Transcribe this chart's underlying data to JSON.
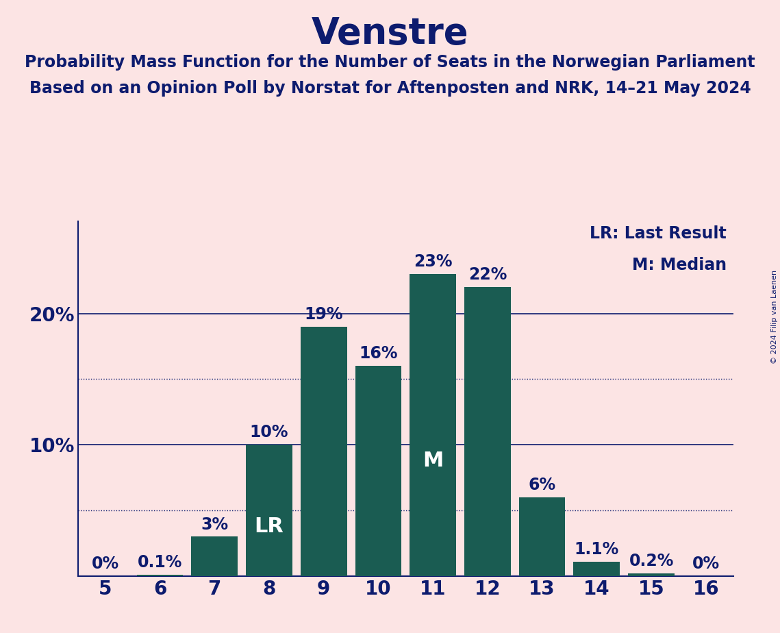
{
  "title": "Venstre",
  "subtitle1": "Probability Mass Function for the Number of Seats in the Norwegian Parliament",
  "subtitle2": "Based on an Opinion Poll by Norstat for Aftenposten and NRK, 14–21 May 2024",
  "copyright": "© 2024 Filip van Laenen",
  "seats": [
    5,
    6,
    7,
    8,
    9,
    10,
    11,
    12,
    13,
    14,
    15,
    16
  ],
  "probabilities": [
    0.0,
    0.1,
    3.0,
    10.0,
    19.0,
    16.0,
    23.0,
    22.0,
    6.0,
    1.1,
    0.2,
    0.0
  ],
  "bar_color": "#1a5c52",
  "background_color": "#fce4e4",
  "text_color": "#0d1b6e",
  "white_color": "#ffffff",
  "lr_seat": 8,
  "median_seat": 11,
  "yticks": [
    0,
    10,
    20
  ],
  "solid_lines": [
    10.0,
    20.0
  ],
  "dotted_lines": [
    5.0,
    15.0
  ],
  "ylim": [
    0,
    27
  ],
  "legend_text_lr": "LR: Last Result",
  "legend_text_m": "M: Median",
  "title_fontsize": 38,
  "subtitle_fontsize": 17,
  "axis_tick_fontsize": 20,
  "bar_label_fontsize": 17,
  "legend_fontsize": 17,
  "lr_m_fontsize": 22,
  "copyright_fontsize": 8
}
